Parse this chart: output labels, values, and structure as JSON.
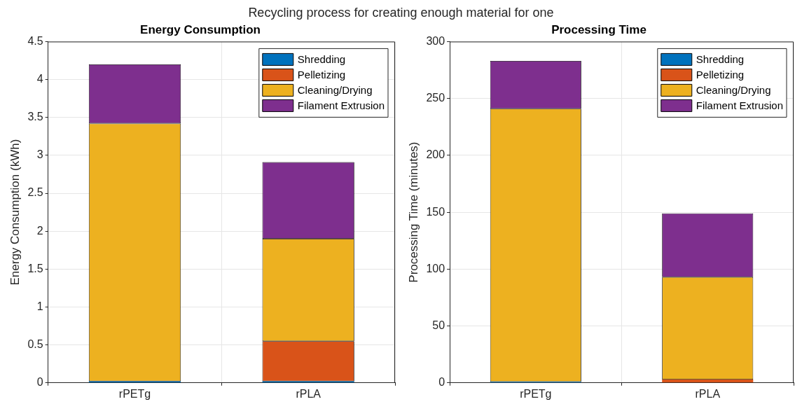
{
  "chart_data": [
    {
      "type": "bar",
      "title": "Energy Consumption",
      "annotations": [
        "Recycling process for creating enough material for one"
      ],
      "ylabel": "Energy Consumption (kWh)",
      "categories": [
        "rPETg",
        "rPLA"
      ],
      "stacked": true,
      "series": [
        {
          "name": "Shredding",
          "color": "#0072bd",
          "values": [
            0.02,
            0.02
          ]
        },
        {
          "name": "Pelletizing",
          "color": "#d95319",
          "values": [
            0,
            0.53
          ]
        },
        {
          "name": "Cleaning/Drying",
          "color": "#edb120",
          "values": [
            3.4,
            1.35
          ]
        },
        {
          "name": "Filament Extrusion",
          "color": "#7e2f8e",
          "values": [
            0.78,
            1.01
          ]
        }
      ],
      "ylim": [
        0,
        4.5
      ],
      "yticks": [
        0,
        0.5,
        1,
        1.5,
        2,
        2.5,
        3,
        3.5,
        4,
        4.5
      ],
      "grid": true,
      "legend": "top right"
    },
    {
      "type": "bar",
      "title": "Processing Time",
      "ylabel": "Processing Time (minutes)",
      "categories": [
        "rPETg",
        "rPLA"
      ],
      "stacked": true,
      "series": [
        {
          "name": "Shredding",
          "color": "#0072bd",
          "values": [
            1,
            0
          ]
        },
        {
          "name": "Pelletizing",
          "color": "#d95319",
          "values": [
            0,
            3
          ]
        },
        {
          "name": "Cleaning/Drying",
          "color": "#edb120",
          "values": [
            240,
            90
          ]
        },
        {
          "name": "Filament Extrusion",
          "color": "#7e2f8e",
          "values": [
            42,
            56
          ]
        }
      ],
      "ylim": [
        0,
        300
      ],
      "yticks": [
        0,
        50,
        100,
        150,
        200,
        250,
        300
      ],
      "grid": true,
      "legend": "top right"
    }
  ]
}
